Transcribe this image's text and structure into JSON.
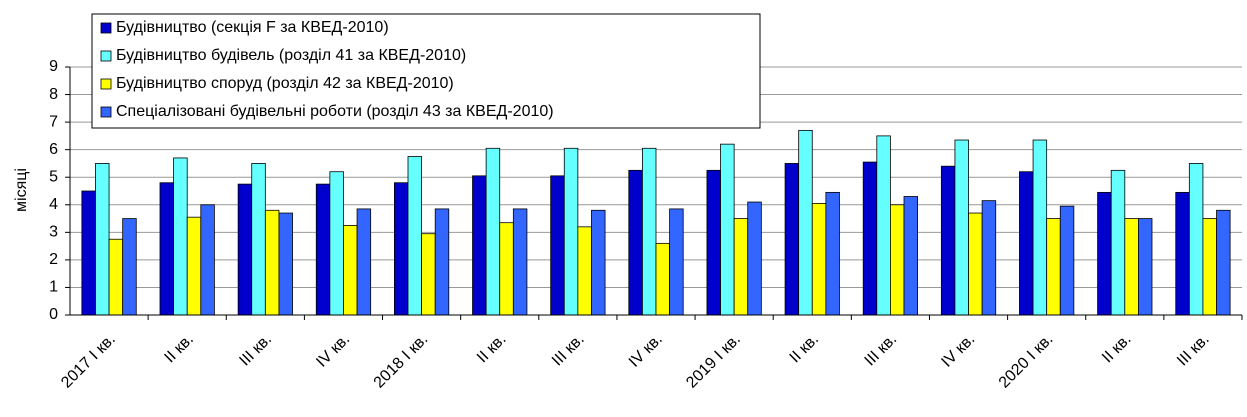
{
  "chart_data": {
    "type": "bar",
    "ylabel": "місяці",
    "categories": [
      "2017 I кв.",
      "II кв.",
      "III кв.",
      "IV кв.",
      "2018 I кв.",
      "II кв.",
      "III кв.",
      "IV кв.",
      "2019 I кв.",
      "II кв.",
      "III кв.",
      "IV кв.",
      "2020 I кв.",
      "II кв.",
      "III кв."
    ],
    "series": [
      {
        "name": "Будівництво (секція F за КВЕД-2010)",
        "color": "#0000cc",
        "values": [
          4.5,
          4.8,
          4.75,
          4.75,
          4.8,
          5.05,
          5.05,
          5.25,
          5.25,
          5.5,
          5.55,
          5.4,
          5.2,
          4.45,
          4.45
        ]
      },
      {
        "name": "Будівництво будівель (розділ 41 за КВЕД-2010)",
        "color": "#66ffff",
        "values": [
          5.5,
          5.7,
          5.5,
          5.2,
          5.75,
          6.05,
          6.05,
          6.05,
          6.2,
          6.7,
          6.5,
          6.35,
          6.35,
          5.25,
          5.5
        ]
      },
      {
        "name": "Будівництво споруд (розділ 42 за КВЕД-2010)",
        "color": "#ffff00",
        "values": [
          2.75,
          3.55,
          3.8,
          3.25,
          2.95,
          3.35,
          3.2,
          2.6,
          3.5,
          4.05,
          4.0,
          3.7,
          3.5,
          3.5,
          3.5
        ]
      },
      {
        "name": "Спеціалізовані будівельні роботи (розділ 43 за КВЕД-2010)",
        "color": "#3366ff",
        "values": [
          3.5,
          4.0,
          3.7,
          3.85,
          3.85,
          3.85,
          3.8,
          3.85,
          4.1,
          4.45,
          4.3,
          4.15,
          3.95,
          3.5,
          3.8
        ]
      }
    ],
    "ylim": [
      0,
      9
    ],
    "yticks": [
      0,
      1,
      2,
      3,
      4,
      5,
      6,
      7,
      8,
      9
    ],
    "grid": true,
    "legend": "upper left"
  }
}
